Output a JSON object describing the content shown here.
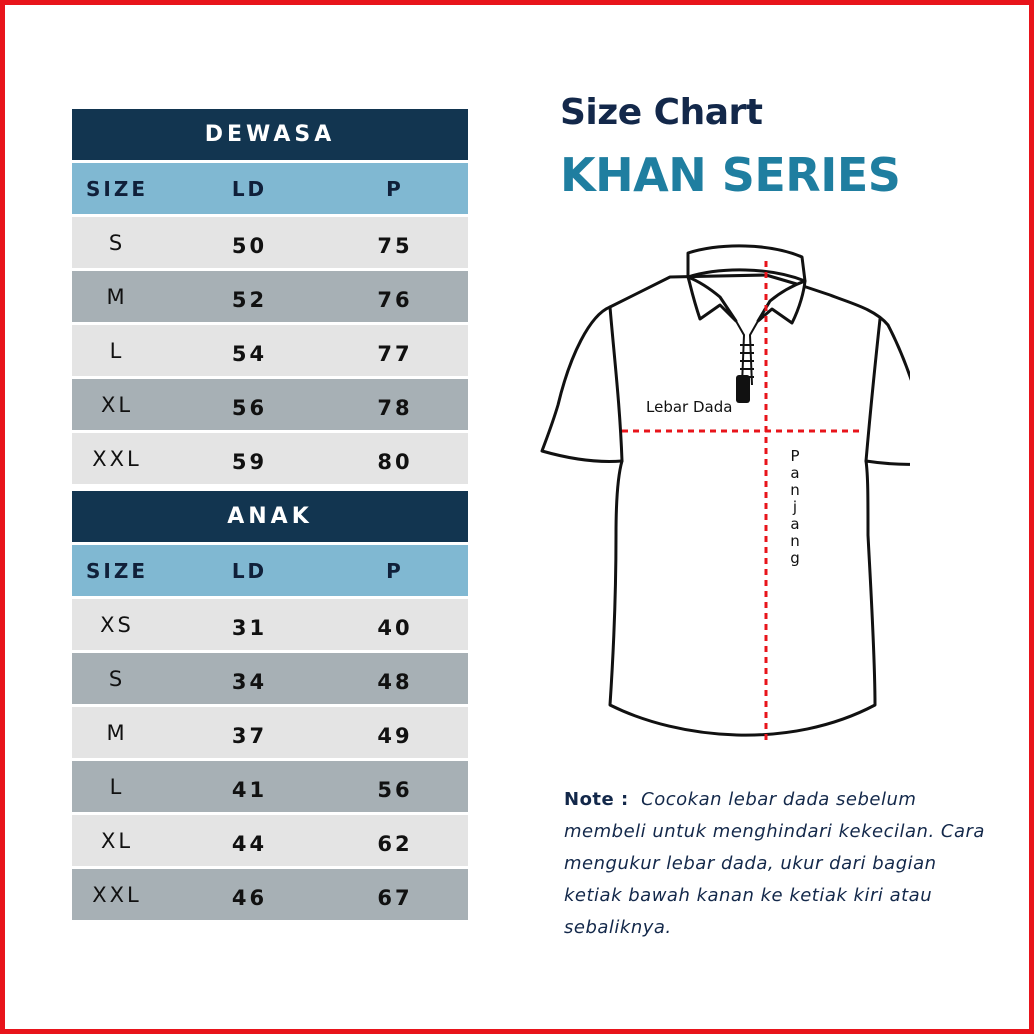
{
  "dewasa": {
    "title": "DEWASA",
    "columns": [
      "SIZE",
      "LD",
      "P"
    ],
    "rows": [
      [
        "S",
        "50",
        "75"
      ],
      [
        "M",
        "52",
        "76"
      ],
      [
        "L",
        "54",
        "77"
      ],
      [
        "XL",
        "56",
        "78"
      ],
      [
        "XXL",
        "59",
        "80"
      ]
    ]
  },
  "anak": {
    "title": "ANAK",
    "columns": [
      "SIZE",
      "LD",
      "P"
    ],
    "rows": [
      [
        "XS",
        "31",
        "40"
      ],
      [
        "S",
        "34",
        "48"
      ],
      [
        "M",
        "37",
        "49"
      ],
      [
        "L",
        "41",
        "56"
      ],
      [
        "XL",
        "44",
        "62"
      ],
      [
        "XXL",
        "46",
        "67"
      ]
    ]
  },
  "header": {
    "title": "Size Chart",
    "series": "KHAN SERIES"
  },
  "diagram": {
    "chest_label": "Lebar Dada",
    "length_label": "Panjang",
    "icon": "shirt-icon"
  },
  "note": {
    "label": "Note :",
    "text": "Cocokan lebar dada sebelum membeli untuk menghindari kekecilan. Cara mengukur lebar dada, ukur dari bagian ketiak bawah kanan ke ketiak kiri atau sebaliknya."
  },
  "colors": {
    "border": "#e8141b",
    "table_header": "#123550",
    "column_header": "#80b8d2",
    "row_light": "#e4e4e4",
    "row_dark": "#a7b0b5",
    "title": "#13284a",
    "series": "#1f7ea0",
    "measure_line": "#e8141b"
  }
}
